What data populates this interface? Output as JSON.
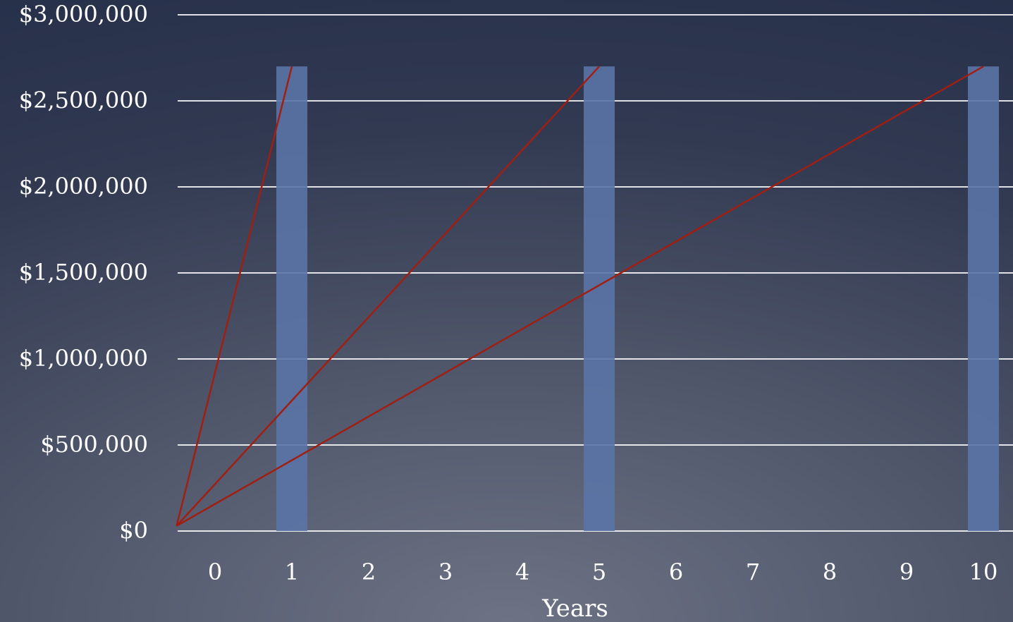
{
  "chart_data": {
    "type": "bar",
    "title": "",
    "xlabel": "Years",
    "ylabel": "",
    "categories": [
      "0",
      "1",
      "2",
      "3",
      "4",
      "5",
      "6",
      "7",
      "8",
      "9",
      "10"
    ],
    "ylim": [
      0,
      3000000
    ],
    "y_ticks": [
      0,
      500000,
      1000000,
      1500000,
      2000000,
      2500000,
      3000000
    ],
    "y_tick_labels": [
      "$0",
      "$500,000",
      "$1,000,000",
      "$1,500,000",
      "$2,000,000",
      "$2,500,000",
      "$3,000,000"
    ],
    "grid": true,
    "bars": [
      {
        "x": 1,
        "value": 2700000
      },
      {
        "x": 5,
        "value": 2700000
      },
      {
        "x": 10,
        "value": 2700000
      }
    ],
    "lines": [
      {
        "points": [
          [
            -0.5,
            30000
          ],
          [
            1,
            2700000
          ]
        ]
      },
      {
        "points": [
          [
            -0.5,
            30000
          ],
          [
            5,
            2700000
          ]
        ]
      },
      {
        "points": [
          [
            -0.5,
            30000
          ],
          [
            10,
            2700000
          ]
        ]
      }
    ],
    "colors": {
      "bar": "#5a74a6",
      "line": "#a01e12",
      "grid": "#ffffff",
      "text": "#ffffff"
    }
  }
}
